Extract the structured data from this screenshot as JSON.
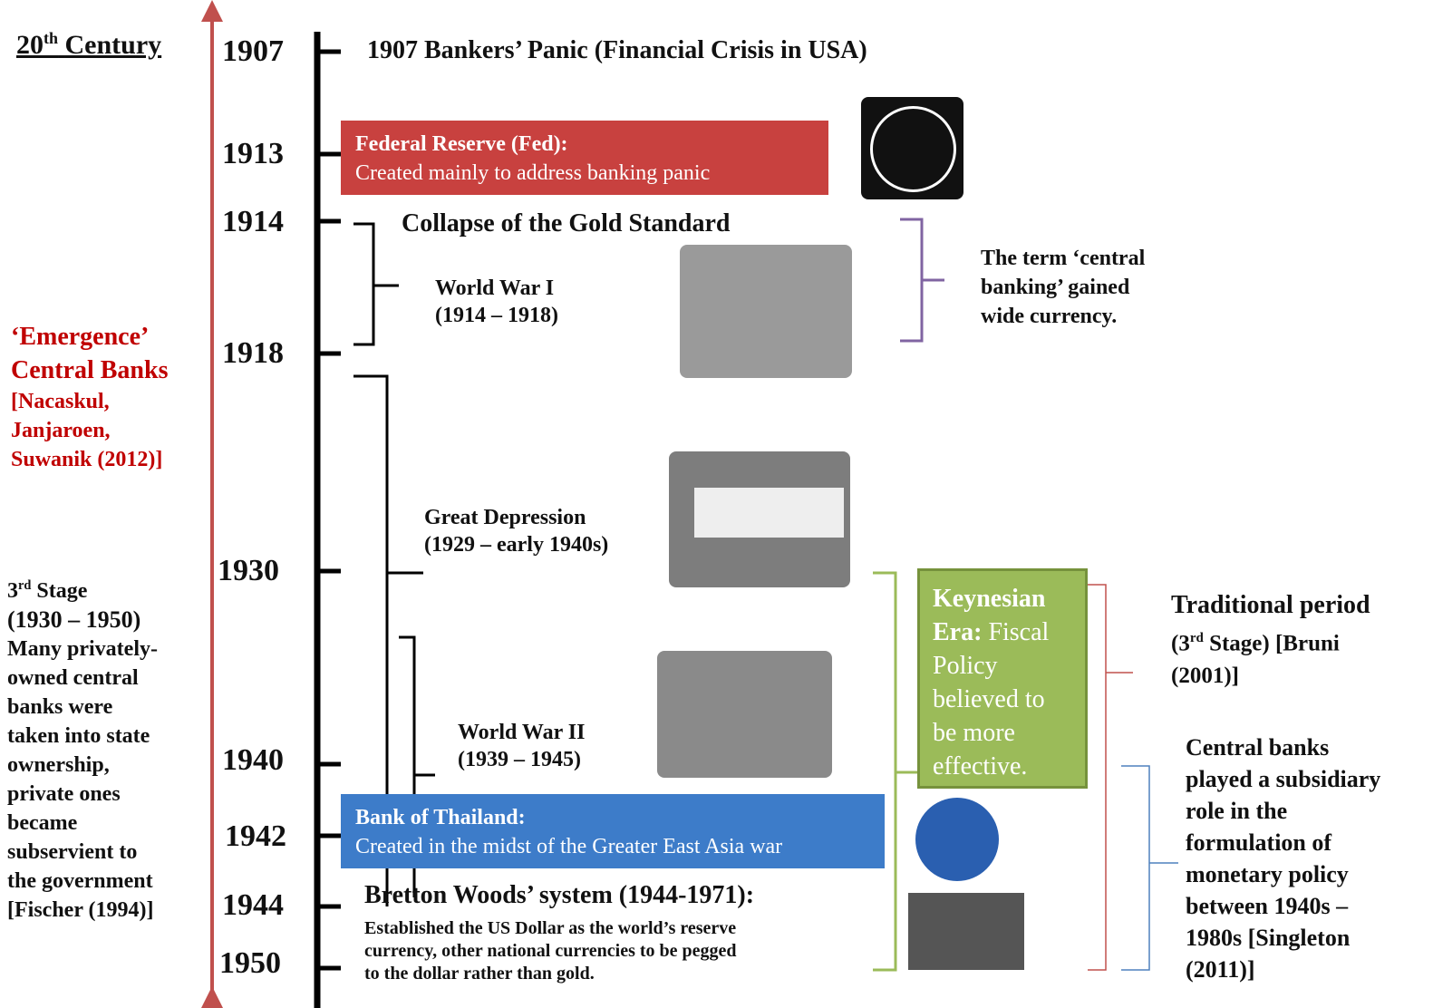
{
  "century": {
    "number": "20",
    "suffix": "th",
    "word": "Century"
  },
  "years": [
    "1907",
    "1913",
    "1914",
    "1918",
    "1930",
    "1940",
    "1942",
    "1944",
    "1950"
  ],
  "events": {
    "panic": "1907 Bankers’ Panic (Financial Crisis in USA)",
    "fed": {
      "title": "Federal Reserve (Fed):",
      "body": "Created mainly to address banking panic"
    },
    "gold": "Collapse of the Gold Standard",
    "ww1": {
      "name": "World War I",
      "period": "(1914 – 1918)"
    },
    "depression": {
      "name": "Great Depression",
      "period": "(1929 – early 1940s)"
    },
    "ww2": {
      "name": "World War II",
      "period": "(1939 – 1945)"
    },
    "bot": {
      "title": "Bank of Thailand:",
      "body": "Created in the midst of  the Greater East Asia war"
    },
    "bretton": {
      "title": "Bretton Woods’ system (1944-1971)",
      "colon": ":",
      "lines": [
        "Established the US Dollar as the world’s reserve",
        "currency, other national currencies to be pegged",
        "to the dollar rather than gold."
      ]
    }
  },
  "notes": {
    "term": [
      "The term ‘central",
      "banking’ gained",
      "wide currency."
    ],
    "emergence": {
      "title": [
        "‘Emergence’",
        "Central Banks"
      ],
      "source": [
        "[Nacaskul,",
        "Janjaroen,",
        "Suwanik (2012)]"
      ]
    },
    "stage": {
      "number": "3",
      "suffix": "rd",
      "word": "Stage",
      "lines": [
        "(1930 – 1950)",
        "Many privately-",
        "owned central",
        "banks were",
        "taken into state",
        "ownership,",
        "private ones",
        "became",
        "subservient to",
        "the government",
        "[Fischer (1994)]"
      ]
    },
    "keynes": {
      "title": "Keynesian",
      "lead": "Era:",
      "rest": "Fiscal",
      "lines": [
        "Policy",
        "believed to",
        "be more",
        "effective."
      ]
    },
    "traditional": {
      "line1": "Traditional period",
      "open": "(3",
      "suffix": "rd",
      "rest": "Stage) [Bruni",
      "line3": "(2001)]"
    },
    "subsidiary": [
      "Central banks",
      "played a subsidiary",
      "role in the",
      "formulation of",
      "monetary policy",
      "between 1940s –",
      "1980s [Singleton",
      "(2011)]"
    ]
  }
}
